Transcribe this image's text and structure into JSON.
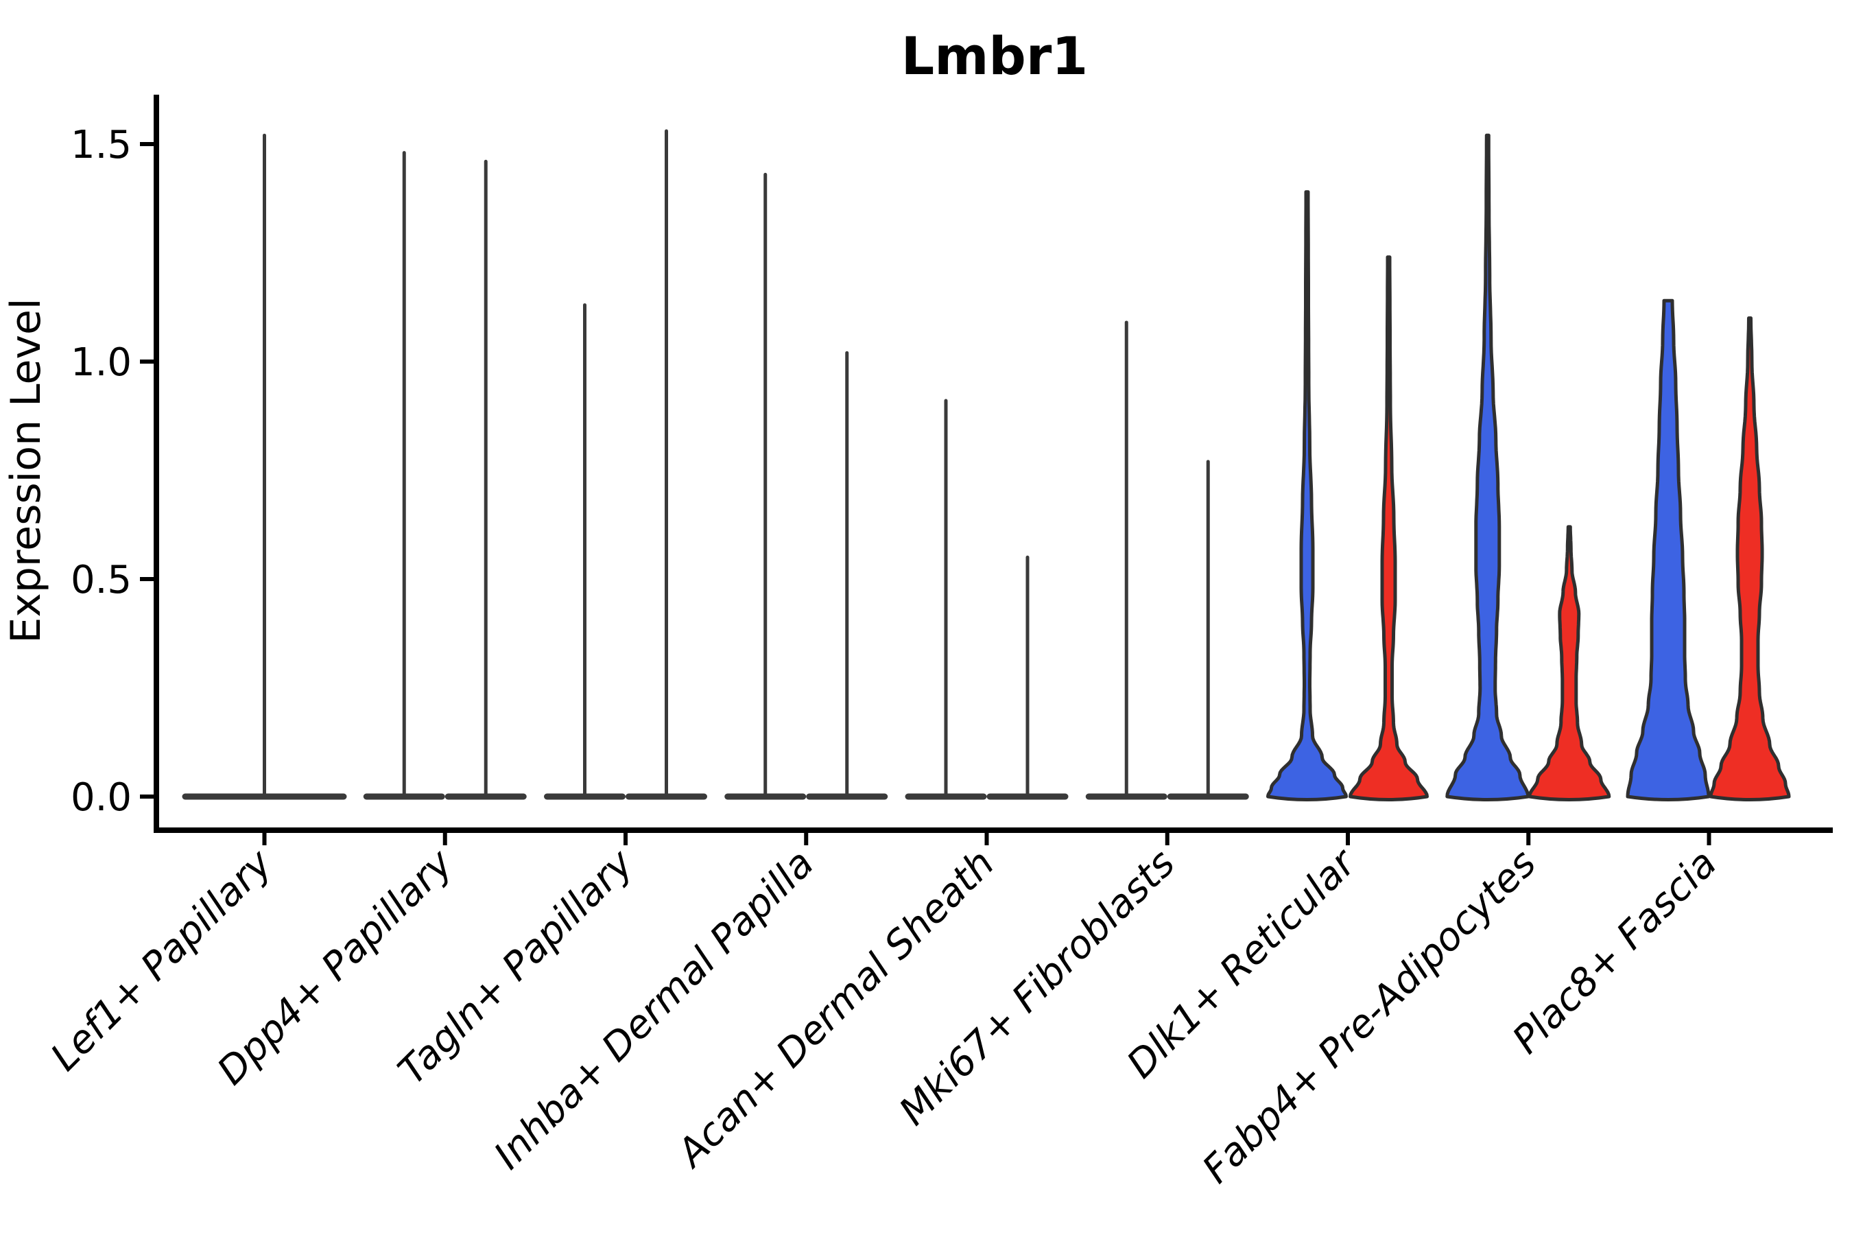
{
  "title": "Lmbr1",
  "chart_data": {
    "type": "violin",
    "title": "Lmbr1",
    "ylabel": "Expression Level",
    "xlabel": "",
    "ytick_labels": [
      "0.0",
      "0.5",
      "1.0",
      "1.5"
    ],
    "ylim": [
      -0.08,
      1.62
    ],
    "grid": false,
    "legend": "none",
    "categories": [
      "Lef1+ Papillary",
      "Dpp4+ Papillary",
      "Tagln+ Papillary",
      "Inhba+ Dermal Papilla",
      "Acan+ Dermal Sheath",
      "Mki67+ Fibroblasts",
      "Dlk1+ Reticular",
      "Fabp4+ Pre-Adipocytes",
      "Plac8+ Fascia"
    ],
    "colors": {
      "group_left_fill": "#3D63E3",
      "group_right_fill": "#EE2E24",
      "violin_outline": "#2F2F2F",
      "collapsed_violin": "#3A3A3A",
      "axis": "#000000",
      "background": "#FFFFFF"
    },
    "violins": [
      {
        "category": "Lef1+ Papillary",
        "group": "single",
        "fill": "none",
        "max_expression": 1.52
      },
      {
        "category": "Dpp4+ Papillary",
        "group": "left",
        "fill": "none",
        "max_expression": 1.48
      },
      {
        "category": "Dpp4+ Papillary",
        "group": "right",
        "fill": "none",
        "max_expression": 1.46
      },
      {
        "category": "Tagln+ Papillary",
        "group": "left",
        "fill": "none",
        "max_expression": 1.13
      },
      {
        "category": "Tagln+ Papillary",
        "group": "right",
        "fill": "none",
        "max_expression": 1.53
      },
      {
        "category": "Inhba+ Dermal Papilla",
        "group": "left",
        "fill": "none",
        "max_expression": 1.43
      },
      {
        "category": "Inhba+ Dermal Papilla",
        "group": "right",
        "fill": "none",
        "max_expression": 1.02
      },
      {
        "category": "Acan+ Dermal Sheath",
        "group": "left",
        "fill": "none",
        "max_expression": 0.91
      },
      {
        "category": "Acan+ Dermal Sheath",
        "group": "right",
        "fill": "none",
        "max_expression": 0.55
      },
      {
        "category": "Mki67+ Fibroblasts",
        "group": "left",
        "fill": "none",
        "max_expression": 1.09
      },
      {
        "category": "Mki67+ Fibroblasts",
        "group": "right",
        "fill": "none",
        "max_expression": 0.77
      },
      {
        "category": "Dlk1+ Reticular",
        "group": "left",
        "fill": "#3D63E3",
        "max_expression": 1.39,
        "profile": [
          [
            1.39,
            1.5
          ],
          [
            1.15,
            2
          ],
          [
            0.95,
            2.5
          ],
          [
            0.8,
            4
          ],
          [
            0.68,
            6.5
          ],
          [
            0.57,
            8.5
          ],
          [
            0.48,
            8.5
          ],
          [
            0.4,
            6.5
          ],
          [
            0.33,
            4.5
          ],
          [
            0.26,
            4
          ],
          [
            0.2,
            4.5
          ],
          [
            0.14,
            8
          ],
          [
            0.09,
            22
          ],
          [
            0.05,
            40
          ],
          [
            0.02,
            52
          ],
          [
            0,
            57
          ]
        ]
      },
      {
        "category": "Dlk1+ Reticular",
        "group": "right",
        "fill": "#EE2E24",
        "max_expression": 1.24,
        "profile": [
          [
            1.24,
            1.5
          ],
          [
            1.05,
            2
          ],
          [
            0.9,
            2.5
          ],
          [
            0.76,
            4.5
          ],
          [
            0.64,
            7.5
          ],
          [
            0.54,
            9.5
          ],
          [
            0.45,
            9.5
          ],
          [
            0.37,
            7
          ],
          [
            0.3,
            5
          ],
          [
            0.23,
            5
          ],
          [
            0.17,
            7
          ],
          [
            0.12,
            12
          ],
          [
            0.08,
            24
          ],
          [
            0.04,
            42
          ],
          [
            0,
            56
          ]
        ]
      },
      {
        "category": "Fabp4+ Pre-Adipocytes",
        "group": "left",
        "fill": "#3D63E3",
        "max_expression": 1.52,
        "profile": [
          [
            1.52,
            1.5
          ],
          [
            1.35,
            2
          ],
          [
            1.2,
            3
          ],
          [
            1.05,
            5
          ],
          [
            0.93,
            8
          ],
          [
            0.82,
            12
          ],
          [
            0.72,
            15
          ],
          [
            0.62,
            17
          ],
          [
            0.53,
            17
          ],
          [
            0.45,
            15
          ],
          [
            0.38,
            13
          ],
          [
            0.31,
            11.5
          ],
          [
            0.25,
            11
          ],
          [
            0.19,
            13
          ],
          [
            0.14,
            20
          ],
          [
            0.09,
            33
          ],
          [
            0.05,
            47
          ],
          [
            0,
            59
          ]
        ]
      },
      {
        "category": "Fabp4+ Pre-Adipocytes",
        "group": "right",
        "fill": "#EE2E24",
        "max_expression": 0.62,
        "profile": [
          [
            0.62,
            1.5
          ],
          [
            0.57,
            2.5
          ],
          [
            0.52,
            4
          ],
          [
            0.47,
            9
          ],
          [
            0.42,
            14
          ],
          [
            0.37,
            13
          ],
          [
            0.32,
            11
          ],
          [
            0.27,
            10
          ],
          [
            0.22,
            10
          ],
          [
            0.17,
            12
          ],
          [
            0.12,
            18
          ],
          [
            0.08,
            30
          ],
          [
            0.04,
            46
          ],
          [
            0,
            58
          ]
        ]
      },
      {
        "category": "Plac8+ Fascia",
        "group": "left",
        "fill": "#3D63E3",
        "max_expression": 1.14,
        "profile": [
          [
            1.14,
            6
          ],
          [
            1.05,
            8
          ],
          [
            0.95,
            11
          ],
          [
            0.85,
            13
          ],
          [
            0.75,
            15
          ],
          [
            0.65,
            18
          ],
          [
            0.55,
            21
          ],
          [
            0.47,
            23
          ],
          [
            0.4,
            24
          ],
          [
            0.33,
            24
          ],
          [
            0.27,
            25
          ],
          [
            0.21,
            29
          ],
          [
            0.15,
            37
          ],
          [
            0.1,
            46
          ],
          [
            0.05,
            54
          ],
          [
            0,
            59
          ]
        ]
      },
      {
        "category": "Plac8+ Fascia",
        "group": "right",
        "fill": "#EE2E24",
        "max_expression": 1.1,
        "profile": [
          [
            1.1,
            1.5
          ],
          [
            1.0,
            3
          ],
          [
            0.9,
            6
          ],
          [
            0.8,
            10
          ],
          [
            0.71,
            14
          ],
          [
            0.63,
            17
          ],
          [
            0.56,
            18
          ],
          [
            0.49,
            17
          ],
          [
            0.42,
            14
          ],
          [
            0.36,
            12
          ],
          [
            0.3,
            12
          ],
          [
            0.24,
            14
          ],
          [
            0.18,
            19
          ],
          [
            0.12,
            29
          ],
          [
            0.07,
            42
          ],
          [
            0.03,
            52
          ],
          [
            0,
            57
          ]
        ]
      }
    ]
  }
}
